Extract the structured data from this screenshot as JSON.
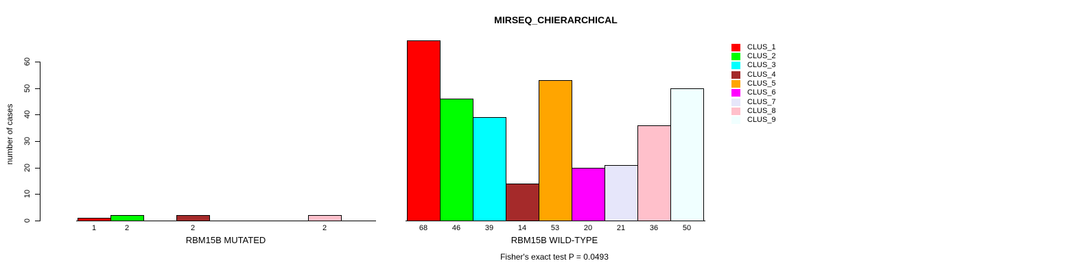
{
  "title": "MIRSEQ_CHIERARCHICAL",
  "caption": "Fisher's exact test P = 0.0493",
  "yaxis": {
    "label": "number of cases",
    "ticks": [
      0,
      10,
      20,
      30,
      40,
      50,
      60
    ]
  },
  "legend": {
    "items": [
      {
        "label": "CLUS_1",
        "color": "#FF0000"
      },
      {
        "label": "CLUS_2",
        "color": "#00FF00"
      },
      {
        "label": "CLUS_3",
        "color": "#00FFFF"
      },
      {
        "label": "CLUS_4",
        "color": "#A52A2A"
      },
      {
        "label": "CLUS_5",
        "color": "#FFA500"
      },
      {
        "label": "CLUS_6",
        "color": "#FF00FF"
      },
      {
        "label": "CLUS_7",
        "color": "#E6E6FA"
      },
      {
        "label": "CLUS_8",
        "color": "#FFC0CB"
      },
      {
        "label": "CLUS_9",
        "color": "#F0FFFF"
      }
    ]
  },
  "chart_data": [
    {
      "type": "bar",
      "title": "MIRSEQ_CHIERARCHICAL",
      "xlabel": "RBM15B MUTATED",
      "ylabel": "number of cases",
      "ylim": [
        0,
        60
      ],
      "legend_position": "right",
      "grid": false,
      "categories": [
        "CLUS_1",
        "CLUS_2",
        "CLUS_3",
        "CLUS_4",
        "CLUS_5",
        "CLUS_6",
        "CLUS_7",
        "CLUS_8",
        "CLUS_9"
      ],
      "values": [
        1,
        2,
        0,
        2,
        0,
        0,
        0,
        2,
        0
      ],
      "bar_labels": [
        "1",
        "2",
        "",
        "2",
        "",
        "",
        "",
        "2",
        ""
      ],
      "colors": [
        "#FF0000",
        "#00FF00",
        "#00FFFF",
        "#A52A2A",
        "#FFA500",
        "#FF00FF",
        "#E6E6FA",
        "#FFC0CB",
        "#F0FFFF"
      ]
    },
    {
      "type": "bar",
      "title": "MIRSEQ_CHIERARCHICAL",
      "xlabel": "RBM15B WILD-TYPE",
      "ylabel": "number of cases",
      "ylim": [
        0,
        60
      ],
      "legend_position": "right",
      "grid": false,
      "categories": [
        "CLUS_1",
        "CLUS_2",
        "CLUS_3",
        "CLUS_4",
        "CLUS_5",
        "CLUS_6",
        "CLUS_7",
        "CLUS_8",
        "CLUS_9"
      ],
      "values": [
        68,
        46,
        39,
        14,
        53,
        20,
        21,
        36,
        50
      ],
      "bar_labels": [
        "68",
        "46",
        "39",
        "14",
        "53",
        "20",
        "21",
        "36",
        "50"
      ],
      "colors": [
        "#FF0000",
        "#00FF00",
        "#00FFFF",
        "#A52A2A",
        "#FFA500",
        "#FF00FF",
        "#E6E6FA",
        "#FFC0CB",
        "#F0FFFF"
      ]
    }
  ]
}
